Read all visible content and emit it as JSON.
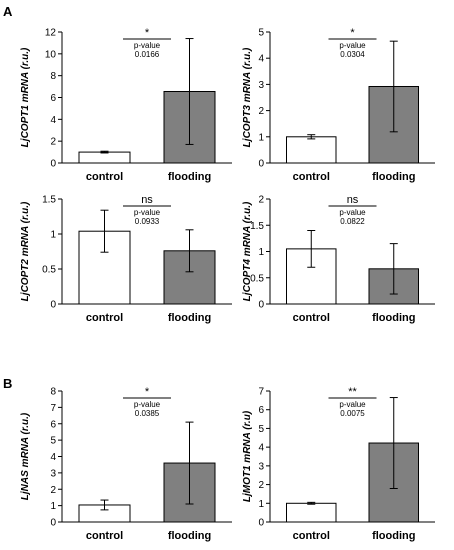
{
  "panel_labels": [
    "A",
    "B"
  ],
  "chart_data": [
    {
      "type": "bar",
      "ylabel": "LjCOPT1 mRNA (r.u.)",
      "categories": [
        "control",
        "flooding"
      ],
      "values": [
        1.0,
        6.55
      ],
      "errors": [
        0.08,
        4.85
      ],
      "ylim": [
        0,
        12
      ],
      "yticks": [
        "0",
        "2",
        "4",
        "6",
        "8",
        "10",
        "12"
      ],
      "significance": "*",
      "pvalue_label": "p-value",
      "pvalue": "0.0166",
      "bar_colors": [
        "#ffffff",
        "#808080"
      ]
    },
    {
      "type": "bar",
      "ylabel": "LjCOPT3 mRNA (r.u.)",
      "categories": [
        "control",
        "flooding"
      ],
      "values": [
        1.0,
        2.92
      ],
      "errors": [
        0.08,
        1.73
      ],
      "ylim": [
        0,
        5
      ],
      "yticks": [
        "0",
        "1",
        "2",
        "3",
        "4",
        "5"
      ],
      "significance": "*",
      "pvalue_label": "p-value",
      "pvalue": "0.0304",
      "bar_colors": [
        "#ffffff",
        "#808080"
      ]
    },
    {
      "type": "bar",
      "ylabel": "LjCOPT2 mRNA (r.u.)",
      "categories": [
        "control",
        "flooding"
      ],
      "values": [
        1.04,
        0.76
      ],
      "errors": [
        0.3,
        0.3
      ],
      "ylim": [
        0,
        1.5
      ],
      "yticks": [
        "0",
        "0.5",
        "1",
        "1.5"
      ],
      "significance": "ns",
      "pvalue_label": "p-value",
      "pvalue": "0.0933",
      "bar_colors": [
        "#ffffff",
        "#808080"
      ]
    },
    {
      "type": "bar",
      "ylabel": "LjCOPT4 mRNA (r.u.)",
      "categories": [
        "control",
        "flooding"
      ],
      "values": [
        1.05,
        0.67
      ],
      "errors": [
        0.35,
        0.48
      ],
      "ylim": [
        0,
        2
      ],
      "yticks": [
        "0",
        "0.5",
        "1",
        "1.5",
        "2"
      ],
      "significance": "ns",
      "pvalue_label": "p-value",
      "pvalue": "0.0822",
      "bar_colors": [
        "#ffffff",
        "#808080"
      ]
    },
    {
      "type": "bar",
      "ylabel": "LjNAS mRNA (r.u.)",
      "categories": [
        "control",
        "flooding"
      ],
      "values": [
        1.04,
        3.6
      ],
      "errors": [
        0.3,
        2.5
      ],
      "ylim": [
        0,
        8
      ],
      "yticks": [
        "0",
        "1",
        "2",
        "3",
        "4",
        "5",
        "6",
        "7",
        "8"
      ],
      "significance": "*",
      "pvalue_label": "p-value",
      "pvalue": "0.0385",
      "bar_colors": [
        "#ffffff",
        "#808080"
      ]
    },
    {
      "type": "bar",
      "ylabel": "LjMOT1 mRNA (r.u)",
      "categories": [
        "control",
        "flooding"
      ],
      "values": [
        1.0,
        4.22
      ],
      "errors": [
        0.05,
        2.43
      ],
      "ylim": [
        0,
        7
      ],
      "yticks": [
        "0",
        "1",
        "2",
        "3",
        "4",
        "5",
        "6",
        "7"
      ],
      "significance": "**",
      "pvalue_label": "p-value",
      "pvalue": "0.0075",
      "bar_colors": [
        "#ffffff",
        "#808080"
      ]
    }
  ]
}
